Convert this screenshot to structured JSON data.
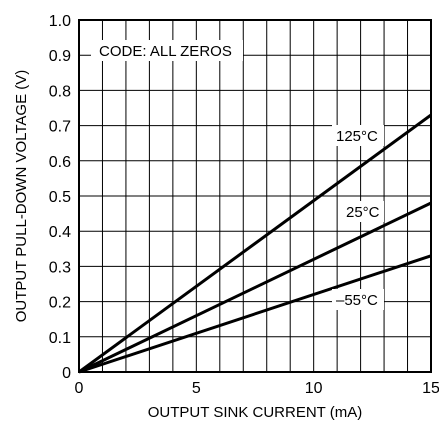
{
  "chart_data": {
    "type": "line",
    "xlabel": "OUTPUT SINK CURRENT (mA)",
    "ylabel": "OUTPUT PULL-DOWN VOLTAGE (V)",
    "xlim": [
      0,
      15
    ],
    "ylim": [
      0,
      1.0
    ],
    "x_ticks": [
      "0",
      "5",
      "10",
      "15"
    ],
    "y_ticks": [
      "0",
      "0.1",
      "0.2",
      "0.3",
      "0.4",
      "0.5",
      "0.6",
      "0.7",
      "0.8",
      "0.9",
      "1.0"
    ],
    "grid": true,
    "annotation": "CODE: ALL ZEROS",
    "series": [
      {
        "name": "125°C",
        "x": [
          0,
          15
        ],
        "y": [
          0,
          0.73
        ]
      },
      {
        "name": "25°C",
        "x": [
          0,
          15
        ],
        "y": [
          0,
          0.48
        ]
      },
      {
        "name": "–55°C",
        "x": [
          0,
          15
        ],
        "y": [
          0,
          0.33
        ]
      }
    ]
  }
}
